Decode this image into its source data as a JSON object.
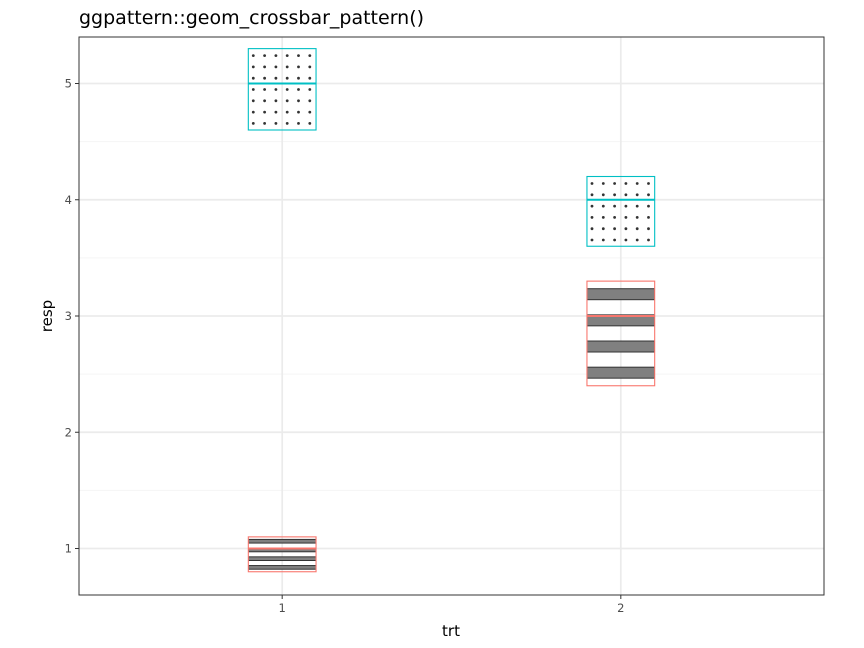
{
  "chart_data": {
    "type": "crossbar",
    "title": "ggpattern::geom_crossbar_pattern()",
    "xlabel": "trt",
    "ylabel": "resp",
    "categories": [
      "1",
      "2"
    ],
    "xlim": [
      0.4,
      2.6
    ],
    "ylim": [
      0.6,
      5.4
    ],
    "yticks": [
      1,
      2,
      3,
      4,
      5
    ],
    "grid": true,
    "legend": "none",
    "bar_width": 0.2,
    "series": [
      {
        "group": "1",
        "color": "#F8766D",
        "pattern": "stripe",
        "pattern_angle": "horizontal",
        "points": [
          {
            "x": "1",
            "y": 1,
            "lower": 0.8,
            "upper": 1.1
          },
          {
            "x": "2",
            "y": 3,
            "lower": 2.4,
            "upper": 3.3
          }
        ]
      },
      {
        "group": "2",
        "color": "#00BFC4",
        "pattern": "circle",
        "points": [
          {
            "x": "1",
            "y": 5,
            "lower": 4.6,
            "upper": 5.3
          },
          {
            "x": "2",
            "y": 4,
            "lower": 3.6,
            "upper": 4.2
          }
        ]
      }
    ],
    "colors": {
      "panel_border": "#333333",
      "grid_major": "#ebebeb",
      "grid_minor": "#f5f5f5",
      "pattern_fill": "#808080",
      "pattern_line": "#333333"
    }
  }
}
